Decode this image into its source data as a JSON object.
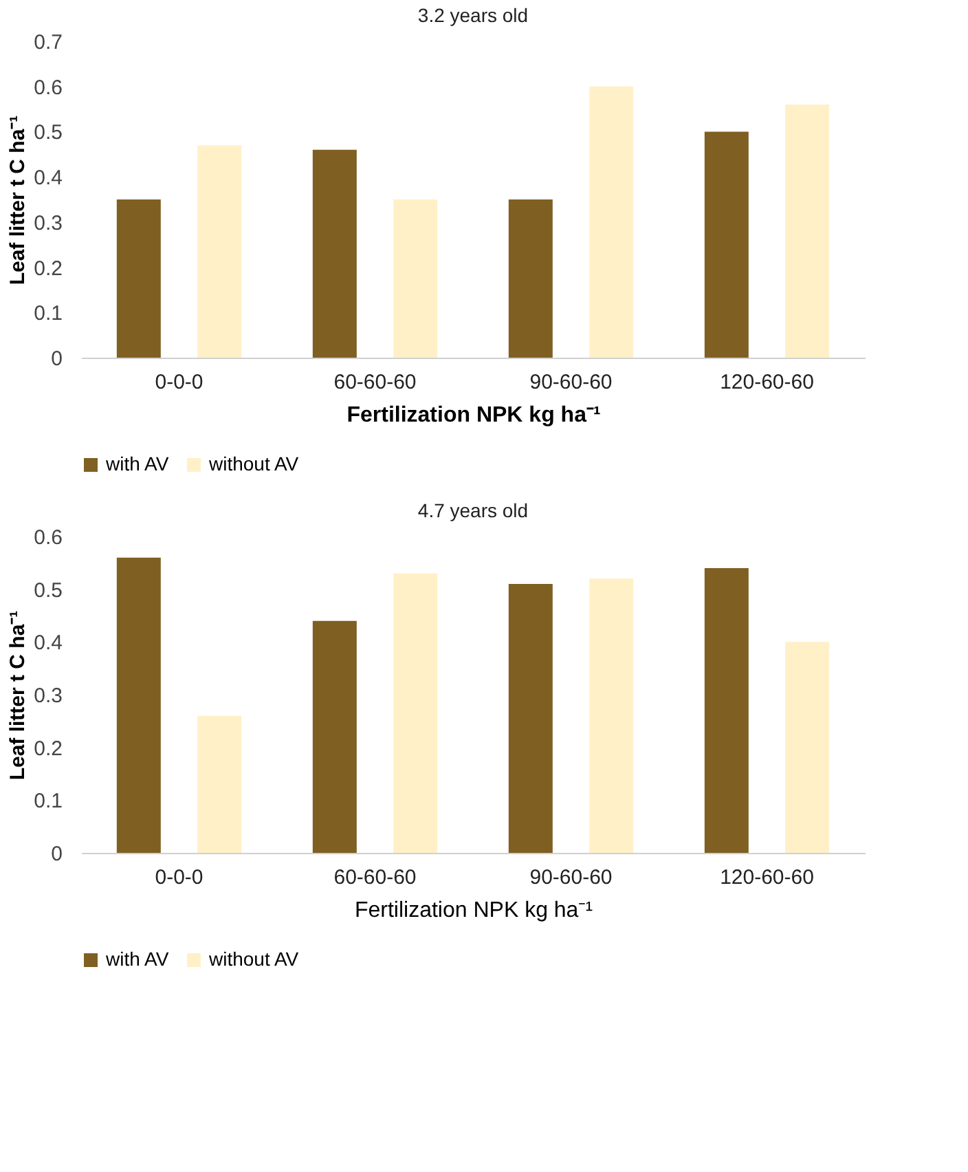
{
  "chart_data": [
    {
      "type": "bar",
      "title": "3.2 years old",
      "xlabel": "Fertilization NPK kg ha⁻¹",
      "ylabel": "Leaf litter t C ha⁻¹",
      "categories": [
        "0-0-0",
        "60-60-60",
        "90-60-60",
        "120-60-60"
      ],
      "series": [
        {
          "name": "with AV",
          "color": "#7f5f22",
          "values": [
            0.35,
            0.46,
            0.35,
            0.5
          ]
        },
        {
          "name": "without AV",
          "color": "#fff0c8",
          "values": [
            0.47,
            0.35,
            0.6,
            0.56
          ]
        }
      ],
      "ylim": [
        0,
        0.7
      ],
      "yticks": [
        0,
        0.1,
        0.2,
        0.3,
        0.4,
        0.5,
        0.6,
        0.7
      ],
      "grid": false,
      "legend": "bottom"
    },
    {
      "type": "bar",
      "title": "4.7 years old",
      "xlabel": "Fertilization NPK kg ha⁻¹",
      "ylabel": "Leaf litter t C ha⁻¹",
      "categories": [
        "0-0-0",
        "60-60-60",
        "90-60-60",
        "120-60-60"
      ],
      "series": [
        {
          "name": "with AV",
          "color": "#7f5f22",
          "values": [
            0.56,
            0.44,
            0.51,
            0.54
          ]
        },
        {
          "name": "without AV",
          "color": "#fff0c8",
          "values": [
            0.26,
            0.53,
            0.52,
            0.4
          ]
        }
      ],
      "ylim": [
        0,
        0.6
      ],
      "yticks": [
        0,
        0.1,
        0.2,
        0.3,
        0.4,
        0.5,
        0.6
      ],
      "grid": false,
      "legend": "bottom"
    }
  ]
}
